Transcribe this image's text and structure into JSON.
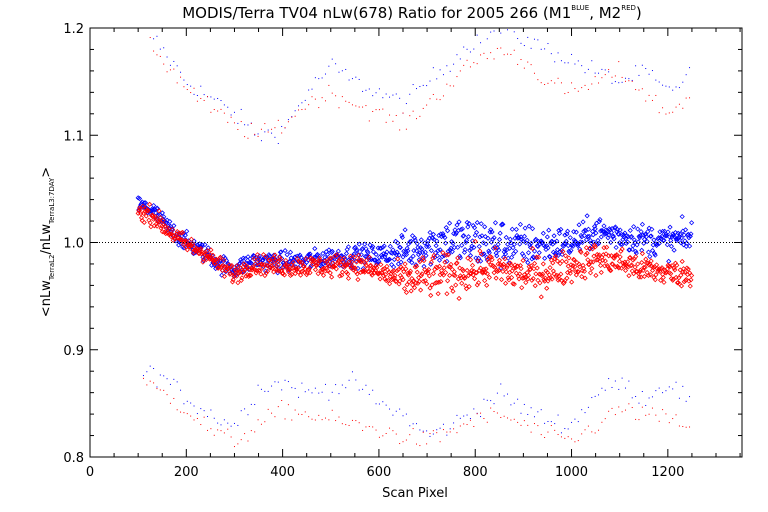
{
  "chart_data": {
    "type": "scatter",
    "title": "MODIS/Terra TV04 nLw(678) Ratio for 2005 266 (M1",
    "title_sup1": "BLUE",
    "title_mid": ", M2",
    "title_sup2": "RED",
    "title_end": ")",
    "xlabel": "Scan Pixel",
    "ylabel": {
      "open": "<nLw",
      "sub1": "TerraL2",
      "slash": "/nLw",
      "sub2": "TerraL3:7DAY",
      "close": ">"
    },
    "xlim": [
      0,
      1354
    ],
    "ylim": [
      0.8,
      1.2
    ],
    "x_ticks": [
      "0",
      "200",
      "400",
      "600",
      "800",
      "1000",
      "1200"
    ],
    "y_ticks": [
      "0.8",
      "0.9",
      "1.0",
      "1.1",
      "1.2"
    ],
    "reference_line": 1.0,
    "series": [
      {
        "color": "#0000ff",
        "marker": "diamond",
        "trend": [
          [
            100,
            1.035
          ],
          [
            130,
            1.03
          ],
          [
            160,
            1.015
          ],
          [
            200,
            1.0
          ],
          [
            240,
            0.99
          ],
          [
            270,
            0.98
          ],
          [
            300,
            0.975
          ],
          [
            340,
            0.983
          ],
          [
            400,
            0.982
          ],
          [
            450,
            0.983
          ],
          [
            500,
            0.986
          ],
          [
            550,
            0.988
          ],
          [
            600,
            0.988
          ],
          [
            650,
            0.992
          ],
          [
            700,
            0.998
          ],
          [
            750,
            1.002
          ],
          [
            800,
            1.0
          ],
          [
            850,
            0.999
          ],
          [
            900,
            0.997
          ],
          [
            950,
            0.998
          ],
          [
            1000,
            1.0
          ],
          [
            1050,
            1.01
          ],
          [
            1100,
            1.007
          ],
          [
            1150,
            1.003
          ],
          [
            1200,
            1.001
          ],
          [
            1250,
            1.005
          ]
        ],
        "spread": [
          [
            100,
            0.006
          ],
          [
            300,
            0.006
          ],
          [
            600,
            0.007
          ],
          [
            650,
            0.012
          ],
          [
            800,
            0.018
          ],
          [
            1000,
            0.01
          ],
          [
            1250,
            0.01
          ]
        ]
      },
      {
        "color": "#ff0000",
        "marker": "diamond",
        "trend": [
          [
            100,
            1.03
          ],
          [
            130,
            1.025
          ],
          [
            160,
            1.012
          ],
          [
            200,
            0.998
          ],
          [
            240,
            0.99
          ],
          [
            270,
            0.978
          ],
          [
            300,
            0.97
          ],
          [
            340,
            0.98
          ],
          [
            400,
            0.978
          ],
          [
            450,
            0.978
          ],
          [
            500,
            0.978
          ],
          [
            550,
            0.98
          ],
          [
            600,
            0.972
          ],
          [
            650,
            0.965
          ],
          [
            700,
            0.968
          ],
          [
            750,
            0.97
          ],
          [
            800,
            0.975
          ],
          [
            850,
            0.975
          ],
          [
            900,
            0.97
          ],
          [
            950,
            0.972
          ],
          [
            1000,
            0.978
          ],
          [
            1050,
            0.985
          ],
          [
            1100,
            0.982
          ],
          [
            1150,
            0.975
          ],
          [
            1200,
            0.972
          ],
          [
            1250,
            0.97
          ]
        ],
        "spread": [
          [
            100,
            0.006
          ],
          [
            300,
            0.006
          ],
          [
            600,
            0.008
          ],
          [
            700,
            0.014
          ],
          [
            900,
            0.012
          ],
          [
            1250,
            0.008
          ]
        ]
      }
    ],
    "bound_bands": [
      {
        "color": "#0000ff",
        "upper": [
          [
            110,
            1.205
          ],
          [
            150,
            1.18
          ],
          [
            200,
            1.15
          ],
          [
            250,
            1.135
          ],
          [
            300,
            1.12
          ],
          [
            350,
            1.1
          ],
          [
            400,
            1.105
          ],
          [
            450,
            1.14
          ],
          [
            500,
            1.165
          ],
          [
            550,
            1.15
          ],
          [
            600,
            1.14
          ],
          [
            650,
            1.13
          ],
          [
            700,
            1.15
          ],
          [
            750,
            1.17
          ],
          [
            800,
            1.19
          ],
          [
            850,
            1.2
          ],
          [
            900,
            1.19
          ],
          [
            950,
            1.18
          ],
          [
            1000,
            1.17
          ],
          [
            1050,
            1.16
          ],
          [
            1100,
            1.15
          ],
          [
            1150,
            1.16
          ],
          [
            1200,
            1.14
          ],
          [
            1250,
            1.16
          ]
        ],
        "lower": [
          [
            110,
            0.88
          ],
          [
            150,
            0.875
          ],
          [
            200,
            0.855
          ],
          [
            250,
            0.84
          ],
          [
            300,
            0.83
          ],
          [
            350,
            0.865
          ],
          [
            400,
            0.87
          ],
          [
            450,
            0.86
          ],
          [
            500,
            0.865
          ],
          [
            550,
            0.87
          ],
          [
            600,
            0.85
          ],
          [
            650,
            0.84
          ],
          [
            700,
            0.82
          ],
          [
            750,
            0.83
          ],
          [
            800,
            0.845
          ],
          [
            850,
            0.86
          ],
          [
            900,
            0.845
          ],
          [
            950,
            0.835
          ],
          [
            1000,
            0.83
          ],
          [
            1050,
            0.86
          ],
          [
            1100,
            0.87
          ],
          [
            1150,
            0.855
          ],
          [
            1200,
            0.87
          ],
          [
            1250,
            0.85
          ]
        ]
      },
      {
        "color": "#ff0000",
        "upper": [
          [
            110,
            1.2
          ],
          [
            150,
            1.17
          ],
          [
            200,
            1.145
          ],
          [
            250,
            1.125
          ],
          [
            300,
            1.11
          ],
          [
            350,
            1.1
          ],
          [
            400,
            1.11
          ],
          [
            450,
            1.13
          ],
          [
            500,
            1.14
          ],
          [
            550,
            1.13
          ],
          [
            600,
            1.12
          ],
          [
            650,
            1.11
          ],
          [
            700,
            1.13
          ],
          [
            750,
            1.15
          ],
          [
            800,
            1.17
          ],
          [
            850,
            1.18
          ],
          [
            900,
            1.17
          ],
          [
            950,
            1.15
          ],
          [
            1000,
            1.14
          ],
          [
            1050,
            1.15
          ],
          [
            1100,
            1.16
          ],
          [
            1150,
            1.14
          ],
          [
            1200,
            1.12
          ],
          [
            1250,
            1.14
          ]
        ],
        "lower": [
          [
            110,
            0.87
          ],
          [
            150,
            0.86
          ],
          [
            200,
            0.845
          ],
          [
            250,
            0.825
          ],
          [
            300,
            0.815
          ],
          [
            350,
            0.83
          ],
          [
            400,
            0.845
          ],
          [
            450,
            0.84
          ],
          [
            500,
            0.835
          ],
          [
            550,
            0.83
          ],
          [
            600,
            0.825
          ],
          [
            650,
            0.82
          ],
          [
            700,
            0.815
          ],
          [
            750,
            0.825
          ],
          [
            800,
            0.835
          ],
          [
            850,
            0.84
          ],
          [
            900,
            0.83
          ],
          [
            950,
            0.82
          ],
          [
            1000,
            0.815
          ],
          [
            1050,
            0.83
          ],
          [
            1100,
            0.845
          ],
          [
            1150,
            0.84
          ],
          [
            1200,
            0.835
          ],
          [
            1250,
            0.83
          ]
        ]
      }
    ]
  }
}
